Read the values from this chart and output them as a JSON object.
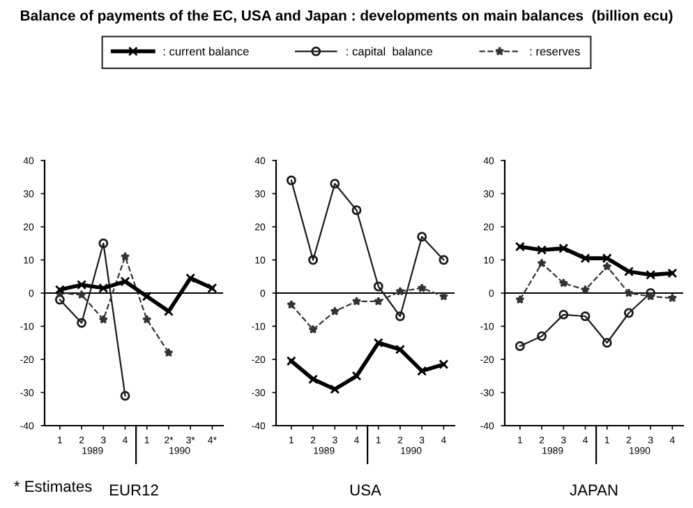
{
  "chart_data": [
    {
      "type": "line",
      "title": "Balance of payments of the EC, USA and Japan : developments on main balances  (billion ecu)",
      "xlabel": "EUR12",
      "categories": [
        "1",
        "2",
        "3",
        "4",
        "1",
        "2*",
        "3*",
        "4*"
      ],
      "series": [
        {
          "name": ": current balance",
          "color": "#000000",
          "marker": "cross",
          "line_style": "solid",
          "values": [
            1,
            2.5,
            1.5,
            3.5,
            -1,
            -5.5,
            4.5,
            1.5
          ]
        },
        {
          "name": ": capital  balance",
          "color": "#1a1a1a",
          "marker": "circle",
          "line_style": "solid",
          "values": [
            -2,
            -9,
            15,
            -31,
            null,
            null,
            null,
            null
          ]
        },
        {
          "name": ": reserves",
          "color": "#333333",
          "marker": "star",
          "line_style": "dashed",
          "values": [
            0,
            -0.5,
            -8,
            11,
            -8,
            -18,
            null,
            null
          ]
        }
      ],
      "ylim": [
        -40,
        40
      ],
      "yticks": [
        -40,
        -30,
        -20,
        -10,
        0,
        10,
        20,
        30,
        40
      ],
      "grid": false,
      "legend": "top",
      "ref_lines": [
        {
          "axis": "y",
          "value": 0
        }
      ],
      "annotations": [
        "1989",
        "1990",
        "* Estimates"
      ]
    },
    {
      "type": "line",
      "xlabel": "USA",
      "categories": [
        "1",
        "2",
        "3",
        "4",
        "1",
        "2",
        "3",
        "4"
      ],
      "series": [
        {
          "color": "#000000",
          "marker": "cross",
          "line_style": "solid",
          "values": [
            -20.5,
            -26,
            -29,
            -25,
            -15,
            -17,
            -23.5,
            -21.5
          ]
        },
        {
          "color": "#1a1a1a",
          "marker": "circle",
          "line_style": "solid",
          "values": [
            34,
            10,
            33,
            25,
            2,
            -7,
            17,
            10
          ]
        },
        {
          "color": "#333333",
          "marker": "star",
          "line_style": "dashed",
          "values": [
            -3.5,
            -11,
            -5.5,
            -2.5,
            -2.5,
            0.5,
            1.5,
            -1
          ]
        }
      ],
      "ylim": [
        -40,
        40
      ],
      "yticks": [
        -40,
        -30,
        -20,
        -10,
        0,
        10,
        20,
        30,
        40
      ],
      "grid": false,
      "ref_lines": [
        {
          "axis": "y",
          "value": 0
        }
      ],
      "annotations": [
        "1989",
        "1990"
      ]
    },
    {
      "type": "line",
      "xlabel": "JAPAN",
      "categories": [
        "1",
        "2",
        "3",
        "4",
        "1",
        "2",
        "3",
        "4"
      ],
      "series": [
        {
          "color": "#000000",
          "marker": "cross",
          "line_style": "solid",
          "values": [
            14,
            13,
            13.5,
            10.5,
            10.5,
            6.5,
            5.5,
            6
          ]
        },
        {
          "color": "#1a1a1a",
          "marker": "circle",
          "line_style": "solid",
          "values": [
            -16,
            -13,
            -6.5,
            -7,
            -15,
            -6,
            0,
            null
          ]
        },
        {
          "color": "#333333",
          "marker": "star",
          "line_style": "dashed",
          "values": [
            -2,
            9,
            3,
            1,
            8,
            0,
            -1,
            -1.5
          ]
        }
      ],
      "ylim": [
        -40,
        40
      ],
      "yticks": [
        -40,
        -30,
        -20,
        -10,
        0,
        10,
        20,
        30,
        40
      ],
      "grid": false,
      "ref_lines": [
        {
          "axis": "y",
          "value": 0
        }
      ],
      "annotations": [
        "1989",
        "1990"
      ]
    }
  ]
}
